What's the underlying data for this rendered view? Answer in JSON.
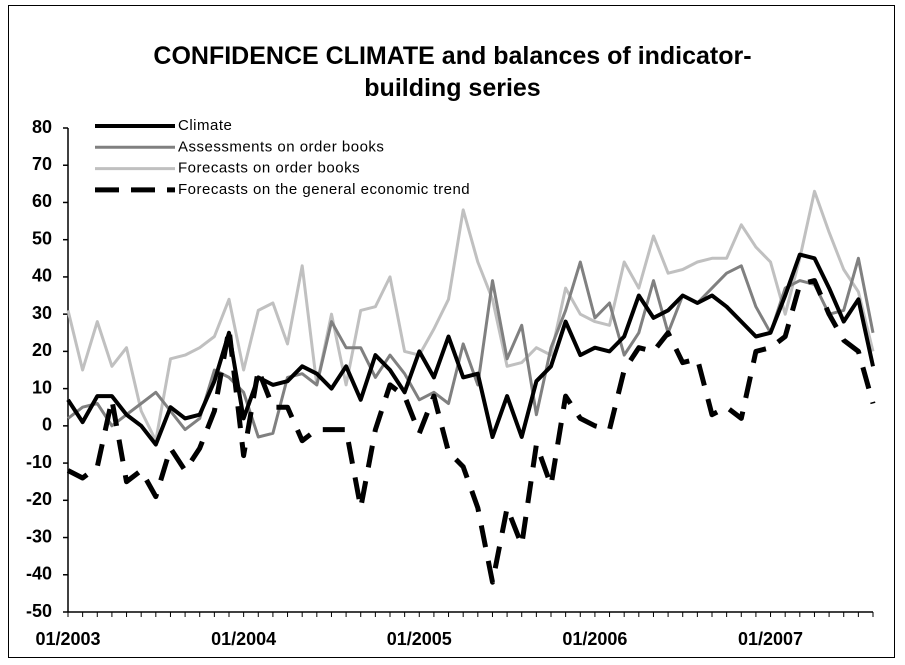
{
  "chart_data": {
    "type": "line",
    "title": "CONFIDENCE CLIMATE and balances of indicator-building series",
    "categories": [
      "01/2003",
      null,
      null,
      null,
      null,
      null,
      null,
      null,
      null,
      null,
      null,
      null,
      "01/2004",
      null,
      null,
      null,
      null,
      null,
      null,
      null,
      null,
      null,
      null,
      null,
      "01/2005",
      null,
      null,
      null,
      null,
      null,
      null,
      null,
      null,
      null,
      null,
      null,
      "01/2006",
      null,
      null,
      null,
      null,
      null,
      null,
      null,
      null,
      null,
      null,
      null,
      "01/2007",
      null,
      null,
      null,
      null,
      null,
      null,
      null
    ],
    "ylim": [
      -50,
      80
    ],
    "yticks": [
      -50,
      -40,
      -30,
      -20,
      -10,
      0,
      10,
      20,
      30,
      40,
      50,
      60,
      70,
      80
    ],
    "legend": "upper left",
    "series": [
      {
        "name": "Climate",
        "color": "#000000",
        "style": "solid",
        "values": [
          7,
          1,
          8,
          8,
          3,
          0,
          -5,
          5,
          2,
          3,
          12,
          25,
          2,
          13,
          11,
          12,
          16,
          14,
          10,
          16,
          7,
          19,
          15,
          9,
          20,
          13,
          24,
          13,
          14,
          -3,
          8,
          -3,
          12,
          16,
          28,
          19,
          21,
          20,
          24,
          35,
          29,
          31,
          35,
          33,
          35,
          32,
          28,
          24,
          25,
          35,
          46,
          45,
          37,
          28,
          34,
          16
        ]
      },
      {
        "name": "Assessments on order books",
        "color": "#808080",
        "style": "solid",
        "values": [
          2,
          5,
          6,
          0,
          3,
          6,
          9,
          4,
          -1,
          2,
          15,
          13,
          9,
          -3,
          -2,
          13,
          14,
          11,
          28,
          21,
          21,
          13,
          19,
          14,
          7,
          9,
          6,
          22,
          11,
          39,
          18,
          27,
          3,
          21,
          31,
          44,
          29,
          33,
          19,
          25,
          39,
          25,
          35,
          33,
          37,
          41,
          43,
          32,
          25,
          37,
          39,
          38,
          30,
          31,
          45,
          25
        ]
      },
      {
        "name": "Forecasts on order books",
        "color": "#c0c0c0",
        "style": "solid",
        "values": [
          31,
          15,
          28,
          16,
          21,
          4,
          -4,
          18,
          19,
          21,
          24,
          34,
          15,
          31,
          33,
          22,
          43,
          11,
          30,
          11,
          31,
          32,
          40,
          20,
          19,
          26,
          34,
          58,
          44,
          34,
          16,
          17,
          21,
          19,
          37,
          30,
          28,
          27,
          44,
          37,
          51,
          41,
          42,
          44,
          45,
          45,
          54,
          48,
          44,
          30,
          45,
          63,
          52,
          42,
          36,
          20
        ]
      },
      {
        "name": "Forecasts on the general economic trend",
        "color": "#000000",
        "style": "dashed",
        "values": [
          -12,
          -14,
          -11,
          7,
          -15,
          -12,
          -19,
          -6,
          -12,
          -6,
          4,
          26,
          -8,
          15,
          5,
          5,
          -4,
          -1,
          -1,
          -1,
          -22,
          -1,
          11,
          8,
          -2,
          8,
          -7,
          -11,
          -22,
          -42,
          -22,
          -32,
          -5,
          -16,
          8,
          2,
          0,
          -1,
          15,
          21,
          20,
          25,
          17,
          18,
          3,
          5,
          2,
          20,
          21,
          24,
          38,
          39,
          30,
          23,
          20,
          6
        ]
      }
    ]
  }
}
